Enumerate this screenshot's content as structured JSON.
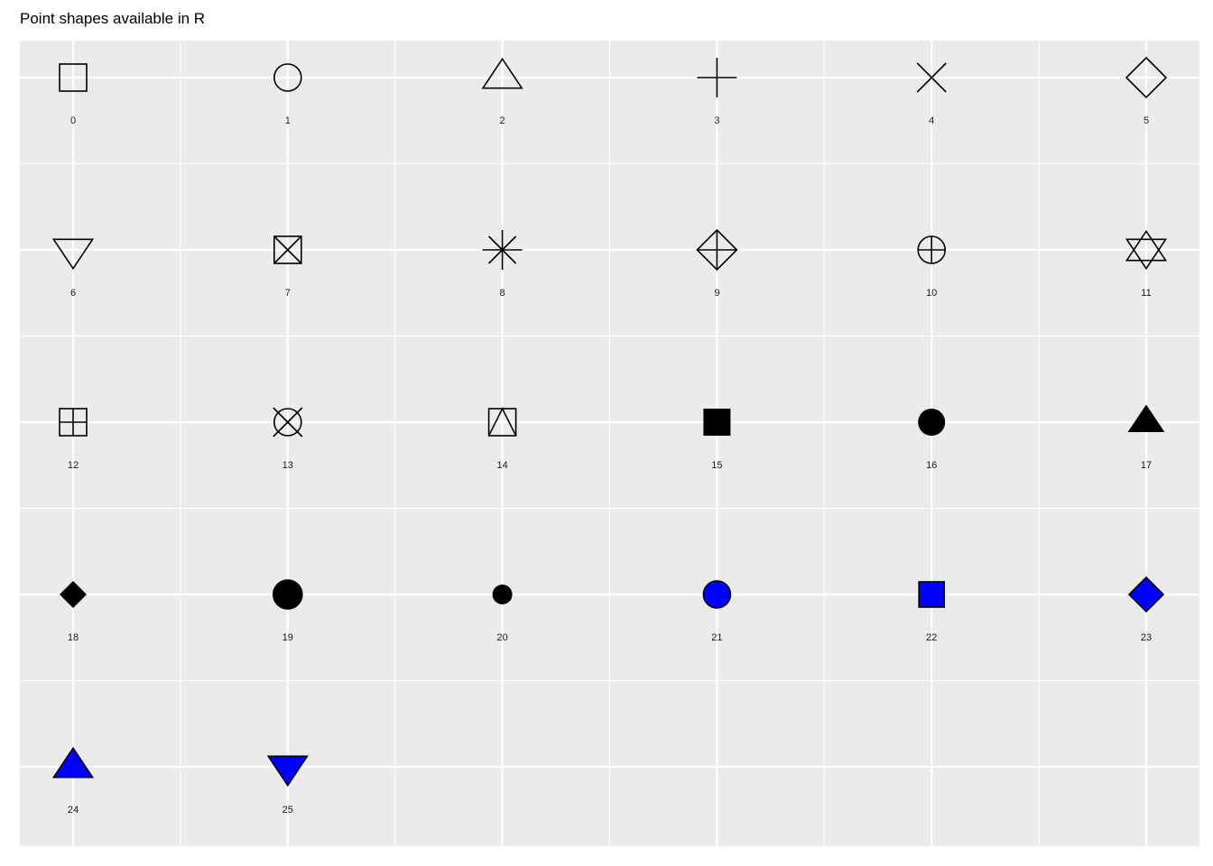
{
  "chart_data": {
    "type": "scatter",
    "title": "Point shapes available in R",
    "xlabel": "",
    "ylabel": "",
    "grid": true,
    "columns": 6,
    "rows": 5,
    "fill_color": "#0000FF",
    "stroke_color": "#000000",
    "panel_background": "#EBEBEB",
    "gridline_color": "#FFFFFF",
    "points": [
      {
        "shape": 0,
        "label": "0",
        "col": 0,
        "row": 0
      },
      {
        "shape": 1,
        "label": "1",
        "col": 1,
        "row": 0
      },
      {
        "shape": 2,
        "label": "2",
        "col": 2,
        "row": 0
      },
      {
        "shape": 3,
        "label": "3",
        "col": 3,
        "row": 0
      },
      {
        "shape": 4,
        "label": "4",
        "col": 4,
        "row": 0
      },
      {
        "shape": 5,
        "label": "5",
        "col": 5,
        "row": 0
      },
      {
        "shape": 6,
        "label": "6",
        "col": 0,
        "row": 1
      },
      {
        "shape": 7,
        "label": "7",
        "col": 1,
        "row": 1
      },
      {
        "shape": 8,
        "label": "8",
        "col": 2,
        "row": 1
      },
      {
        "shape": 9,
        "label": "9",
        "col": 3,
        "row": 1
      },
      {
        "shape": 10,
        "label": "10",
        "col": 4,
        "row": 1
      },
      {
        "shape": 11,
        "label": "11",
        "col": 5,
        "row": 1
      },
      {
        "shape": 12,
        "label": "12",
        "col": 0,
        "row": 2
      },
      {
        "shape": 13,
        "label": "13",
        "col": 1,
        "row": 2
      },
      {
        "shape": 14,
        "label": "14",
        "col": 2,
        "row": 2
      },
      {
        "shape": 15,
        "label": "15",
        "col": 3,
        "row": 2
      },
      {
        "shape": 16,
        "label": "16",
        "col": 4,
        "row": 2
      },
      {
        "shape": 17,
        "label": "17",
        "col": 5,
        "row": 2
      },
      {
        "shape": 18,
        "label": "18",
        "col": 0,
        "row": 3
      },
      {
        "shape": 19,
        "label": "19",
        "col": 1,
        "row": 3
      },
      {
        "shape": 20,
        "label": "20",
        "col": 2,
        "row": 3
      },
      {
        "shape": 21,
        "label": "21",
        "col": 3,
        "row": 3
      },
      {
        "shape": 22,
        "label": "22",
        "col": 4,
        "row": 3
      },
      {
        "shape": 23,
        "label": "23",
        "col": 5,
        "row": 3
      },
      {
        "shape": 24,
        "label": "24",
        "col": 0,
        "row": 4
      },
      {
        "shape": 25,
        "label": "25",
        "col": 1,
        "row": 4
      }
    ]
  }
}
